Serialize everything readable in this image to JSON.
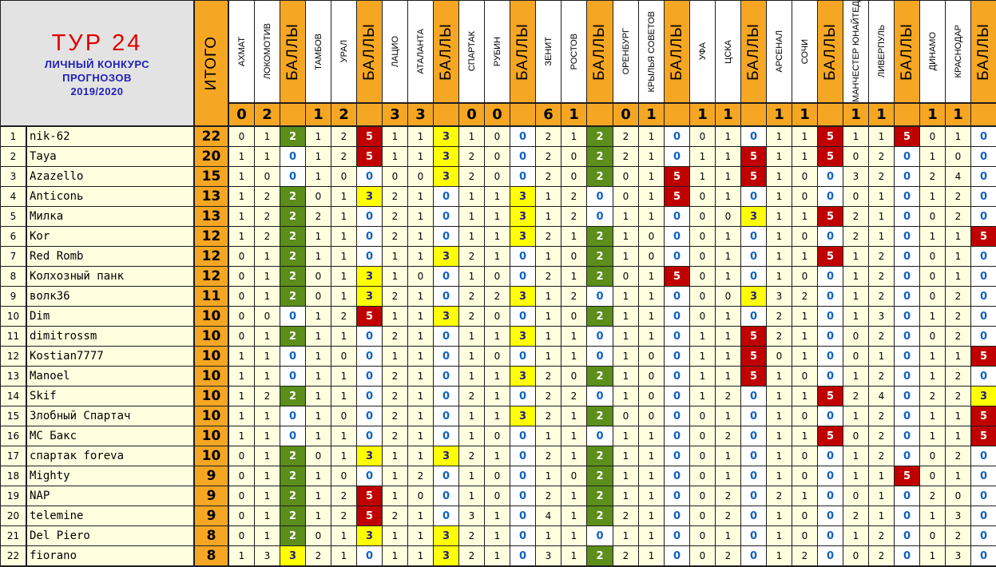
{
  "title": {
    "main": "ТУР 24",
    "line1": "ЛИЧНЫЙ КОНКУРС",
    "line2": "ПРОГНОЗОВ",
    "line3": "2019/2020"
  },
  "itogo_label": "ИТОГО",
  "points_label": "БАЛЛЫ",
  "matches": [
    {
      "home": "АХМАТ",
      "away": "ЛОКОМОТИВ",
      "home_goals": "0",
      "away_goals": "2"
    },
    {
      "home": "ТАМБОВ",
      "away": "УРАЛ",
      "home_goals": "1",
      "away_goals": "2"
    },
    {
      "home": "ЛАЦИО",
      "away": "АТАЛАНТА",
      "home_goals": "3",
      "away_goals": "3"
    },
    {
      "home": "СПАРТАК",
      "away": "РУБИН",
      "home_goals": "0",
      "away_goals": "0"
    },
    {
      "home": "ЗЕНИТ",
      "away": "РОСТОВ",
      "home_goals": "6",
      "away_goals": "1"
    },
    {
      "home": "ОРЕНБУРГ",
      "away": "КРЫЛЬЯ СОВЕТОВ",
      "home_goals": "0",
      "away_goals": "1"
    },
    {
      "home": "УФА",
      "away": "ЦСКА",
      "home_goals": "1",
      "away_goals": "1"
    },
    {
      "home": "АРСЕНАЛ",
      "away": "СОЧИ",
      "home_goals": "1",
      "away_goals": "1"
    },
    {
      "home": "МАНЧЕСТЕР ЮНАЙТЕД",
      "away": "ЛИВЕРПУЛЬ",
      "home_goals": "1",
      "away_goals": "1"
    },
    {
      "home": "ДИНАМО",
      "away": "КРАСНОДАР",
      "home_goals": "1",
      "away_goals": "1"
    }
  ],
  "rows": [
    {
      "n": "1",
      "name": "nik-62",
      "total": "22",
      "cells": [
        [
          "0",
          "1",
          "2"
        ],
        [
          "1",
          "2",
          "5"
        ],
        [
          "1",
          "1",
          "3"
        ],
        [
          "1",
          "0",
          "0"
        ],
        [
          "2",
          "1",
          "2"
        ],
        [
          "2",
          "1",
          "0"
        ],
        [
          "0",
          "1",
          "0"
        ],
        [
          "1",
          "1",
          "5"
        ],
        [
          "1",
          "1",
          "5"
        ],
        [
          "0",
          "1",
          "0"
        ]
      ]
    },
    {
      "n": "2",
      "name": "Taya",
      "total": "20",
      "cells": [
        [
          "1",
          "1",
          "0"
        ],
        [
          "1",
          "2",
          "5"
        ],
        [
          "1",
          "1",
          "3"
        ],
        [
          "2",
          "0",
          "0"
        ],
        [
          "2",
          "0",
          "2"
        ],
        [
          "2",
          "1",
          "0"
        ],
        [
          "1",
          "1",
          "5"
        ],
        [
          "1",
          "1",
          "5"
        ],
        [
          "0",
          "2",
          "0"
        ],
        [
          "1",
          "0",
          "0"
        ]
      ]
    },
    {
      "n": "3",
      "name": "Azazello",
      "total": "15",
      "cells": [
        [
          "1",
          "0",
          "0"
        ],
        [
          "1",
          "0",
          "0"
        ],
        [
          "0",
          "0",
          "3"
        ],
        [
          "2",
          "0",
          "0"
        ],
        [
          "2",
          "0",
          "2"
        ],
        [
          "0",
          "1",
          "5"
        ],
        [
          "1",
          "1",
          "5"
        ],
        [
          "1",
          "0",
          "0"
        ],
        [
          "3",
          "2",
          "0"
        ],
        [
          "2",
          "4",
          "0"
        ]
      ]
    },
    {
      "n": "4",
      "name": "Anticonь",
      "total": "13",
      "cells": [
        [
          "1",
          "2",
          "2"
        ],
        [
          "0",
          "1",
          "3"
        ],
        [
          "2",
          "1",
          "0"
        ],
        [
          "1",
          "1",
          "3"
        ],
        [
          "1",
          "2",
          "0"
        ],
        [
          "0",
          "1",
          "5"
        ],
        [
          "0",
          "1",
          "0"
        ],
        [
          "1",
          "0",
          "0"
        ],
        [
          "0",
          "1",
          "0"
        ],
        [
          "1",
          "2",
          "0"
        ]
      ]
    },
    {
      "n": "5",
      "name": "Милка",
      "total": "13",
      "cells": [
        [
          "1",
          "2",
          "2"
        ],
        [
          "2",
          "1",
          "0"
        ],
        [
          "2",
          "1",
          "0"
        ],
        [
          "1",
          "1",
          "3"
        ],
        [
          "1",
          "2",
          "0"
        ],
        [
          "1",
          "1",
          "0"
        ],
        [
          "0",
          "0",
          "3"
        ],
        [
          "1",
          "1",
          "5"
        ],
        [
          "2",
          "1",
          "0"
        ],
        [
          "0",
          "2",
          "0"
        ]
      ]
    },
    {
      "n": "6",
      "name": "Kor",
      "total": "12",
      "cells": [
        [
          "1",
          "2",
          "2"
        ],
        [
          "1",
          "1",
          "0"
        ],
        [
          "2",
          "1",
          "0"
        ],
        [
          "1",
          "1",
          "3"
        ],
        [
          "2",
          "1",
          "2"
        ],
        [
          "1",
          "0",
          "0"
        ],
        [
          "0",
          "1",
          "0"
        ],
        [
          "1",
          "0",
          "0"
        ],
        [
          "2",
          "1",
          "0"
        ],
        [
          "1",
          "1",
          "5"
        ]
      ]
    },
    {
      "n": "7",
      "name": "Red Romb",
      "total": "12",
      "cells": [
        [
          "0",
          "1",
          "2"
        ],
        [
          "1",
          "1",
          "0"
        ],
        [
          "1",
          "1",
          "3"
        ],
        [
          "2",
          "1",
          "0"
        ],
        [
          "1",
          "0",
          "2"
        ],
        [
          "1",
          "0",
          "0"
        ],
        [
          "0",
          "1",
          "0"
        ],
        [
          "1",
          "1",
          "5"
        ],
        [
          "1",
          "2",
          "0"
        ],
        [
          "0",
          "1",
          "0"
        ]
      ]
    },
    {
      "n": "8",
      "name": "Колхозный панк",
      "total": "12",
      "cells": [
        [
          "0",
          "1",
          "2"
        ],
        [
          "0",
          "1",
          "3"
        ],
        [
          "1",
          "0",
          "0"
        ],
        [
          "1",
          "0",
          "0"
        ],
        [
          "2",
          "1",
          "2"
        ],
        [
          "0",
          "1",
          "5"
        ],
        [
          "0",
          "1",
          "0"
        ],
        [
          "1",
          "0",
          "0"
        ],
        [
          "1",
          "2",
          "0"
        ],
        [
          "0",
          "1",
          "0"
        ]
      ]
    },
    {
      "n": "9",
      "name": "волк36",
      "total": "11",
      "cells": [
        [
          "0",
          "1",
          "2"
        ],
        [
          "0",
          "1",
          "3"
        ],
        [
          "2",
          "1",
          "0"
        ],
        [
          "2",
          "2",
          "3"
        ],
        [
          "1",
          "2",
          "0"
        ],
        [
          "1",
          "1",
          "0"
        ],
        [
          "0",
          "0",
          "3"
        ],
        [
          "3",
          "2",
          "0"
        ],
        [
          "1",
          "2",
          "0"
        ],
        [
          "0",
          "2",
          "0"
        ]
      ]
    },
    {
      "n": "10",
      "name": "Dim",
      "total": "10",
      "cells": [
        [
          "0",
          "0",
          "0"
        ],
        [
          "1",
          "2",
          "5"
        ],
        [
          "1",
          "1",
          "3"
        ],
        [
          "2",
          "0",
          "0"
        ],
        [
          "1",
          "0",
          "2"
        ],
        [
          "1",
          "1",
          "0"
        ],
        [
          "0",
          "1",
          "0"
        ],
        [
          "2",
          "1",
          "0"
        ],
        [
          "1",
          "3",
          "0"
        ],
        [
          "1",
          "2",
          "0"
        ]
      ]
    },
    {
      "n": "11",
      "name": "dimitrossm",
      "total": "10",
      "cells": [
        [
          "0",
          "1",
          "2"
        ],
        [
          "1",
          "1",
          "0"
        ],
        [
          "2",
          "1",
          "0"
        ],
        [
          "1",
          "1",
          "3"
        ],
        [
          "1",
          "1",
          "0"
        ],
        [
          "1",
          "1",
          "0"
        ],
        [
          "1",
          "1",
          "5"
        ],
        [
          "2",
          "1",
          "0"
        ],
        [
          "0",
          "2",
          "0"
        ],
        [
          "0",
          "2",
          "0"
        ]
      ]
    },
    {
      "n": "12",
      "name": "Kostian7777",
      "total": "10",
      "cells": [
        [
          "1",
          "1",
          "0"
        ],
        [
          "1",
          "0",
          "0"
        ],
        [
          "1",
          "1",
          "0"
        ],
        [
          "1",
          "0",
          "0"
        ],
        [
          "1",
          "1",
          "0"
        ],
        [
          "1",
          "0",
          "0"
        ],
        [
          "1",
          "1",
          "5"
        ],
        [
          "0",
          "1",
          "0"
        ],
        [
          "0",
          "1",
          "0"
        ],
        [
          "1",
          "1",
          "5"
        ]
      ]
    },
    {
      "n": "13",
      "name": "Manoel",
      "total": "10",
      "cells": [
        [
          "1",
          "1",
          "0"
        ],
        [
          "1",
          "1",
          "0"
        ],
        [
          "2",
          "1",
          "0"
        ],
        [
          "1",
          "1",
          "3"
        ],
        [
          "2",
          "0",
          "2"
        ],
        [
          "1",
          "0",
          "0"
        ],
        [
          "1",
          "1",
          "5"
        ],
        [
          "1",
          "0",
          "0"
        ],
        [
          "1",
          "2",
          "0"
        ],
        [
          "1",
          "2",
          "0"
        ]
      ]
    },
    {
      "n": "14",
      "name": "Skif",
      "total": "10",
      "cells": [
        [
          "1",
          "2",
          "2"
        ],
        [
          "1",
          "1",
          "0"
        ],
        [
          "2",
          "1",
          "0"
        ],
        [
          "2",
          "1",
          "0"
        ],
        [
          "2",
          "2",
          "0"
        ],
        [
          "1",
          "0",
          "0"
        ],
        [
          "1",
          "2",
          "0"
        ],
        [
          "1",
          "1",
          "5"
        ],
        [
          "2",
          "4",
          "0"
        ],
        [
          "2",
          "2",
          "3"
        ]
      ]
    },
    {
      "n": "15",
      "name": "Злобный Спартач",
      "total": "10",
      "cells": [
        [
          "1",
          "1",
          "0"
        ],
        [
          "1",
          "0",
          "0"
        ],
        [
          "2",
          "1",
          "0"
        ],
        [
          "1",
          "1",
          "3"
        ],
        [
          "2",
          "1",
          "2"
        ],
        [
          "0",
          "0",
          "0"
        ],
        [
          "0",
          "1",
          "0"
        ],
        [
          "1",
          "0",
          "0"
        ],
        [
          "1",
          "2",
          "0"
        ],
        [
          "1",
          "1",
          "5"
        ]
      ]
    },
    {
      "n": "16",
      "name": "MC Бакс",
      "total": "10",
      "cells": [
        [
          "1",
          "1",
          "0"
        ],
        [
          "1",
          "1",
          "0"
        ],
        [
          "2",
          "1",
          "0"
        ],
        [
          "1",
          "0",
          "0"
        ],
        [
          "1",
          "1",
          "0"
        ],
        [
          "1",
          "1",
          "0"
        ],
        [
          "0",
          "2",
          "0"
        ],
        [
          "1",
          "1",
          "5"
        ],
        [
          "0",
          "2",
          "0"
        ],
        [
          "1",
          "1",
          "5"
        ]
      ]
    },
    {
      "n": "17",
      "name": "спартак foreva",
      "total": "10",
      "cells": [
        [
          "0",
          "1",
          "2"
        ],
        [
          "0",
          "1",
          "3"
        ],
        [
          "1",
          "1",
          "3"
        ],
        [
          "2",
          "1",
          "0"
        ],
        [
          "2",
          "1",
          "2"
        ],
        [
          "1",
          "1",
          "0"
        ],
        [
          "0",
          "1",
          "0"
        ],
        [
          "1",
          "0",
          "0"
        ],
        [
          "1",
          "2",
          "0"
        ],
        [
          "0",
          "2",
          "0"
        ]
      ]
    },
    {
      "n": "18",
      "name": "Mighty",
      "total": "9",
      "cells": [
        [
          "0",
          "1",
          "2"
        ],
        [
          "1",
          "0",
          "0"
        ],
        [
          "1",
          "2",
          "0"
        ],
        [
          "1",
          "0",
          "0"
        ],
        [
          "1",
          "0",
          "2"
        ],
        [
          "1",
          "1",
          "0"
        ],
        [
          "0",
          "1",
          "0"
        ],
        [
          "1",
          "0",
          "0"
        ],
        [
          "1",
          "1",
          "5"
        ],
        [
          "0",
          "1",
          "0"
        ]
      ]
    },
    {
      "n": "19",
      "name": "NAP",
      "total": "9",
      "cells": [
        [
          "0",
          "1",
          "2"
        ],
        [
          "1",
          "2",
          "5"
        ],
        [
          "1",
          "0",
          "0"
        ],
        [
          "1",
          "0",
          "0"
        ],
        [
          "2",
          "1",
          "2"
        ],
        [
          "1",
          "1",
          "0"
        ],
        [
          "0",
          "2",
          "0"
        ],
        [
          "2",
          "1",
          "0"
        ],
        [
          "0",
          "1",
          "0"
        ],
        [
          "2",
          "0",
          "0"
        ]
      ]
    },
    {
      "n": "20",
      "name": "telemine",
      "total": "9",
      "cells": [
        [
          "0",
          "1",
          "2"
        ],
        [
          "1",
          "2",
          "5"
        ],
        [
          "2",
          "1",
          "0"
        ],
        [
          "3",
          "1",
          "0"
        ],
        [
          "4",
          "1",
          "2"
        ],
        [
          "2",
          "1",
          "0"
        ],
        [
          "0",
          "2",
          "0"
        ],
        [
          "1",
          "0",
          "0"
        ],
        [
          "2",
          "1",
          "0"
        ],
        [
          "1",
          "3",
          "0"
        ]
      ]
    },
    {
      "n": "21",
      "name": "Del Piero",
      "total": "8",
      "cells": [
        [
          "0",
          "1",
          "2"
        ],
        [
          "0",
          "1",
          "3"
        ],
        [
          "1",
          "1",
          "3"
        ],
        [
          "2",
          "1",
          "0"
        ],
        [
          "1",
          "1",
          "0"
        ],
        [
          "1",
          "1",
          "0"
        ],
        [
          "0",
          "1",
          "0"
        ],
        [
          "1",
          "0",
          "0"
        ],
        [
          "1",
          "2",
          "0"
        ],
        [
          "0",
          "2",
          "0"
        ]
      ]
    },
    {
      "n": "22",
      "name": "fiorano",
      "total": "8",
      "cells": [
        [
          "1",
          "3",
          "3"
        ],
        [
          "2",
          "1",
          "0"
        ],
        [
          "1",
          "1",
          "3"
        ],
        [
          "2",
          "1",
          "0"
        ],
        [
          "3",
          "1",
          "2"
        ],
        [
          "2",
          "1",
          "0"
        ],
        [
          "0",
          "2",
          "0"
        ],
        [
          "1",
          "2",
          "0"
        ],
        [
          "0",
          "2",
          "0"
        ],
        [
          "1",
          "3",
          "0"
        ]
      ]
    }
  ]
}
